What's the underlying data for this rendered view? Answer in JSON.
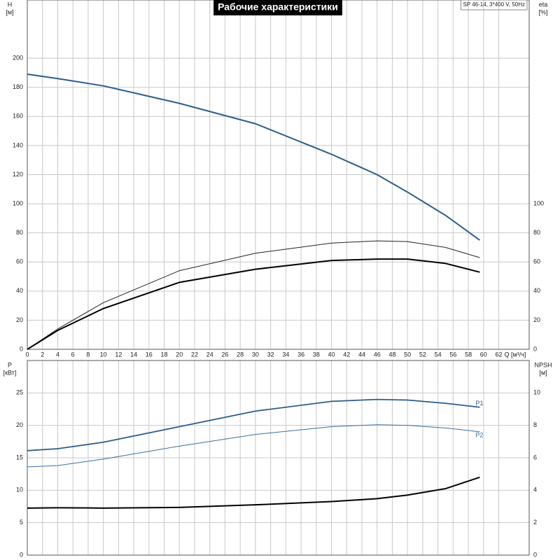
{
  "chart_data": [
    {
      "type": "line",
      "title": "Рабочие характеристики",
      "subtitle": "SP 46-14, 3*400 V, 50Hz",
      "ylabel": [
        "H",
        "[м]"
      ],
      "y2label": [
        "eta",
        "[%]"
      ],
      "xlabel": "Q [м³/ч]",
      "x": [
        0,
        4,
        10,
        20,
        30,
        40,
        46,
        50,
        55,
        59.5
      ],
      "xlim": [
        0,
        66
      ],
      "xticks": [
        0,
        2,
        4,
        6,
        8,
        10,
        12,
        14,
        16,
        18,
        20,
        22,
        24,
        26,
        28,
        30,
        32,
        34,
        36,
        38,
        40,
        42,
        44,
        46,
        48,
        50,
        52,
        54,
        56,
        58,
        60,
        62
      ],
      "ylim": [
        0,
        240
      ],
      "yticks": [
        0,
        20,
        40,
        60,
        80,
        100,
        120,
        140,
        160,
        180,
        200
      ],
      "y2lim": [
        0,
        240
      ],
      "y2ticks": [
        0,
        20,
        40,
        60,
        80,
        100
      ],
      "grid": true,
      "xtick_labels": true,
      "series": [
        {
          "color": "#2b5d8c",
          "width": 2,
          "values": [
            189,
            186,
            181,
            169,
            155,
            134,
            120,
            108,
            92,
            75
          ]
        },
        {
          "color": "#222222",
          "width": 1,
          "axis": "y2",
          "values": [
            0,
            14,
            32,
            54,
            66,
            73,
            74.5,
            74,
            70,
            63
          ]
        },
        {
          "color": "#000000",
          "width": 2,
          "axis": "y2",
          "values": [
            0,
            13,
            28,
            46,
            55,
            61,
            62,
            62,
            59,
            53
          ]
        }
      ]
    },
    {
      "type": "line",
      "ylabel": [
        "P",
        "[кВт]"
      ],
      "y2label": [
        "NPSH",
        "[м]"
      ],
      "x": [
        0,
        4,
        10,
        20,
        30,
        40,
        46,
        50,
        55,
        59.5
      ],
      "xlim": [
        0,
        66
      ],
      "xticks": [
        0,
        2,
        4,
        6,
        8,
        10,
        12,
        14,
        16,
        18,
        20,
        22,
        24,
        26,
        28,
        30,
        32,
        34,
        36,
        38,
        40,
        42,
        44,
        46,
        48,
        50,
        52,
        54,
        56,
        58,
        60,
        62
      ],
      "ylim": [
        0,
        30
      ],
      "yticks": [
        0,
        5,
        10,
        15,
        20,
        25
      ],
      "y2lim": [
        0,
        12
      ],
      "y2ticks": [
        0,
        2,
        4,
        6,
        8,
        10
      ],
      "grid": true,
      "xtick_labels": false,
      "series": [
        {
          "name": "P1",
          "color": "#2b5d8c",
          "width": 1.8,
          "values": [
            16.1,
            16.4,
            17.4,
            19.8,
            22.2,
            23.7,
            24,
            23.9,
            23.4,
            22.8
          ]
        },
        {
          "name": "P2",
          "color": "#3a6f9f",
          "width": 1,
          "values": [
            13.6,
            13.8,
            14.8,
            16.8,
            18.6,
            19.8,
            20.1,
            20,
            19.6,
            19
          ]
        },
        {
          "color": "#000000",
          "width": 2,
          "axis": "y2",
          "values": [
            2.9,
            2.92,
            2.9,
            2.94,
            3.1,
            3.3,
            3.48,
            3.7,
            4.1,
            4.8
          ]
        }
      ]
    }
  ]
}
